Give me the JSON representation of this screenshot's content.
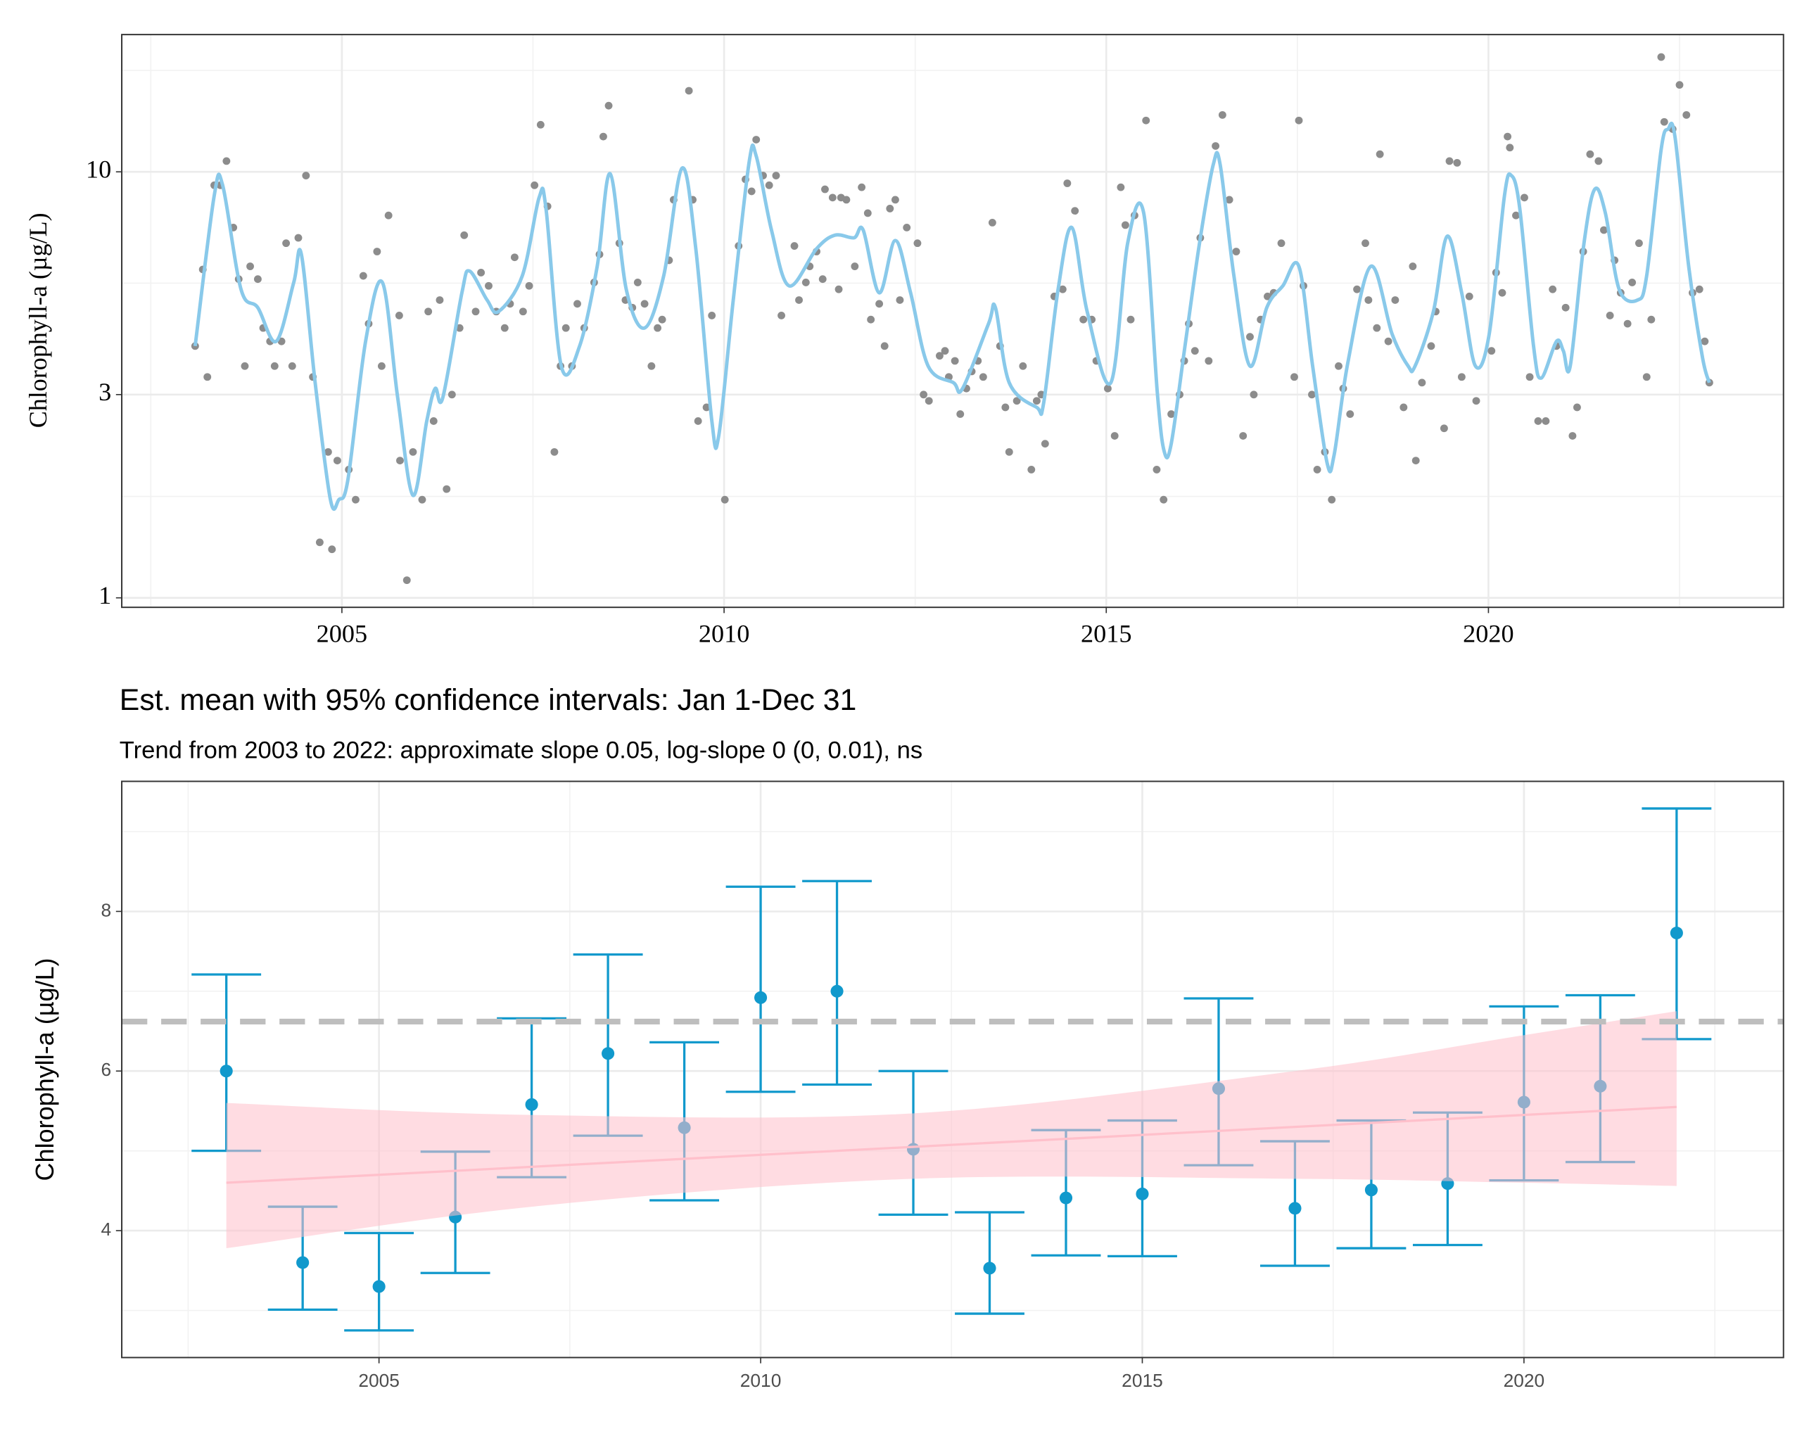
{
  "chart_data": [
    {
      "type": "scatter",
      "y_label": "Chlorophyll-a (µg/L)",
      "log_y": true,
      "grid": true,
      "xlim": [
        2002.12,
        2023.86
      ],
      "ylim": [
        0.95,
        21
      ],
      "xticks": [
        2005,
        2010,
        2015,
        2020
      ],
      "yticks": [
        1,
        3,
        10
      ],
      "minor_xticks": [
        2002.5,
        2007.5,
        2012.5,
        2017.5,
        2022.5
      ],
      "minor_yticks": [
        1.73,
        5.48,
        17.3
      ],
      "points": {
        "color": "#8c8c8c",
        "x": [
          2003.08,
          2003.18,
          2003.24,
          2003.33,
          2003.41,
          2003.49,
          2003.58,
          2003.65,
          2003.73,
          2003.8,
          2003.9,
          2003.97,
          2004.06,
          2004.12,
          2004.21,
          2004.27,
          2004.35,
          2004.43,
          2004.53,
          2004.62,
          2004.71,
          2004.82,
          2004.87,
          2004.94,
          2005.09,
          2005.18,
          2005.28,
          2005.35,
          2005.46,
          2005.52,
          2005.61,
          2005.75,
          2005.76,
          2005.85,
          2005.93,
          2006.05,
          2006.13,
          2006.2,
          2006.28,
          2006.37,
          2006.44,
          2006.54,
          2006.6,
          2006.75,
          2006.82,
          2006.92,
          2007.02,
          2007.13,
          2007.2,
          2007.26,
          2007.37,
          2007.45,
          2007.52,
          2007.6,
          2007.69,
          2007.78,
          2007.86,
          2007.93,
          2008.01,
          2008.08,
          2008.17,
          2008.3,
          2008.37,
          2008.42,
          2008.49,
          2008.63,
          2008.71,
          2008.8,
          2008.87,
          2008.96,
          2009.05,
          2009.13,
          2009.19,
          2009.28,
          2009.34,
          2009.54,
          2009.59,
          2009.66,
          2009.77,
          2009.84,
          2010.01,
          2010.19,
          2010.28,
          2010.36,
          2010.42,
          2010.51,
          2010.59,
          2010.68,
          2010.75,
          2010.92,
          2010.98,
          2011.07,
          2011.12,
          2011.21,
          2011.29,
          2011.32,
          2011.42,
          2011.5,
          2011.53,
          2011.6,
          2011.71,
          2011.8,
          2011.88,
          2011.92,
          2012.03,
          2012.1,
          2012.17,
          2012.24,
          2012.3,
          2012.39,
          2012.53,
          2012.61,
          2012.68,
          2012.82,
          2012.89,
          2012.94,
          2013.02,
          2013.09,
          2013.17,
          2013.24,
          2013.32,
          2013.39,
          2013.51,
          2013.61,
          2013.68,
          2013.73,
          2013.83,
          2013.91,
          2014.02,
          2014.09,
          2014.15,
          2014.2,
          2014.32,
          2014.43,
          2014.49,
          2014.59,
          2014.7,
          2014.81,
          2014.87,
          2015.02,
          2015.11,
          2015.19,
          2015.25,
          2015.32,
          2015.37,
          2015.52,
          2015.66,
          2015.75,
          2015.85,
          2015.96,
          2016.02,
          2016.08,
          2016.16,
          2016.23,
          2016.34,
          2016.43,
          2016.52,
          2016.61,
          2016.7,
          2016.79,
          2016.88,
          2016.93,
          2017.02,
          2017.11,
          2017.19,
          2017.29,
          2017.46,
          2017.52,
          2017.58,
          2017.69,
          2017.76,
          2017.86,
          2017.95,
          2018.04,
          2018.1,
          2018.19,
          2018.28,
          2018.39,
          2018.43,
          2018.54,
          2018.58,
          2018.69,
          2018.78,
          2018.89,
          2019.01,
          2019.05,
          2019.13,
          2019.25,
          2019.31,
          2019.42,
          2019.49,
          2019.59,
          2019.65,
          2019.75,
          2019.84,
          2020.04,
          2020.1,
          2020.18,
          2020.25,
          2020.28,
          2020.36,
          2020.47,
          2020.54,
          2020.65,
          2020.75,
          2020.84,
          2020.89,
          2021.01,
          2021.1,
          2021.16,
          2021.24,
          2021.33,
          2021.44,
          2021.51,
          2021.59,
          2021.65,
          2021.73,
          2021.82,
          2021.88,
          2021.97,
          2022.07,
          2022.13,
          2022.26,
          2022.3,
          2022.41,
          2022.5,
          2022.59,
          2022.67,
          2022.76,
          2022.83,
          2022.89
        ],
        "y": [
          3.9,
          5.9,
          3.3,
          9.3,
          9.3,
          10.6,
          7.4,
          5.6,
          3.5,
          6.0,
          5.6,
          4.3,
          4.0,
          3.5,
          4.0,
          6.8,
          3.5,
          7.0,
          9.8,
          3.3,
          1.35,
          2.2,
          1.3,
          2.1,
          2.0,
          1.7,
          5.7,
          4.4,
          6.5,
          3.5,
          7.9,
          4.6,
          2.1,
          1.1,
          2.2,
          1.7,
          4.7,
          2.6,
          5.0,
          1.8,
          3.0,
          4.3,
          7.1,
          4.7,
          5.8,
          5.4,
          4.7,
          4.3,
          4.9,
          6.3,
          4.7,
          5.4,
          9.3,
          12.9,
          8.3,
          2.2,
          3.5,
          4.3,
          3.5,
          4.9,
          4.3,
          5.5,
          6.4,
          12.1,
          14.3,
          6.8,
          5.0,
          4.8,
          5.5,
          4.9,
          3.5,
          4.3,
          4.5,
          6.2,
          8.6,
          15.5,
          8.6,
          2.6,
          2.8,
          4.6,
          1.7,
          6.7,
          9.6,
          9.0,
          11.9,
          9.8,
          9.3,
          9.8,
          4.6,
          6.7,
          5.0,
          5.5,
          6.0,
          6.5,
          5.6,
          9.1,
          8.7,
          5.3,
          8.7,
          8.6,
          6.0,
          9.2,
          8.0,
          4.5,
          4.9,
          3.9,
          8.2,
          8.6,
          5.0,
          7.4,
          6.8,
          3.0,
          2.9,
          3.7,
          3.8,
          3.3,
          3.6,
          2.7,
          3.1,
          3.4,
          3.6,
          3.3,
          7.6,
          3.9,
          2.8,
          2.2,
          2.9,
          3.5,
          2.0,
          2.9,
          3.0,
          2.3,
          5.1,
          5.3,
          9.4,
          8.1,
          4.5,
          4.5,
          3.6,
          3.1,
          2.4,
          9.2,
          7.5,
          4.5,
          7.9,
          13.2,
          2.0,
          1.7,
          2.7,
          3.0,
          3.6,
          4.4,
          3.8,
          7.0,
          3.6,
          11.5,
          13.6,
          8.6,
          6.5,
          2.4,
          4.1,
          3.0,
          4.5,
          5.1,
          5.2,
          6.8,
          3.3,
          13.2,
          5.4,
          3.0,
          2.0,
          2.2,
          1.7,
          3.5,
          3.1,
          2.7,
          5.3,
          6.8,
          5.0,
          4.3,
          11.0,
          4.0,
          5.0,
          2.8,
          6.0,
          2.1,
          3.2,
          3.9,
          4.7,
          2.5,
          10.6,
          10.5,
          3.3,
          5.1,
          2.9,
          3.8,
          5.8,
          5.2,
          12.1,
          11.4,
          7.9,
          8.7,
          3.3,
          2.6,
          2.6,
          5.3,
          3.9,
          4.8,
          2.4,
          2.8,
          6.5,
          11.0,
          10.6,
          7.3,
          4.6,
          6.2,
          5.2,
          4.4,
          5.5,
          6.8,
          3.3,
          4.5,
          18.6,
          13.1,
          12.6,
          16.0,
          13.6,
          5.2,
          5.3,
          4.0,
          3.2
        ]
      },
      "smooth": {
        "color": "#89c9ea",
        "x": [
          2003.08,
          2003.33,
          2003.44,
          2003.68,
          2003.9,
          2004.14,
          2004.37,
          2004.47,
          2004.65,
          2004.85,
          2004.96,
          2005.08,
          2005.31,
          2005.53,
          2005.73,
          2005.93,
          2006.11,
          2006.22,
          2006.32,
          2006.57,
          2006.67,
          2006.9,
          2007.05,
          2007.36,
          2007.58,
          2007.67,
          2007.87,
          2008.11,
          2008.34,
          2008.51,
          2008.72,
          2008.96,
          2009.21,
          2009.45,
          2009.63,
          2009.84,
          2009.93,
          2010.12,
          2010.33,
          2010.42,
          2010.62,
          2010.85,
          2011.21,
          2011.45,
          2011.7,
          2011.82,
          2012.03,
          2012.24,
          2012.44,
          2012.67,
          2013.0,
          2013.12,
          2013.46,
          2013.55,
          2013.73,
          2014.09,
          2014.18,
          2014.37,
          2014.55,
          2014.75,
          2015.06,
          2015.28,
          2015.49,
          2015.67,
          2015.76,
          2015.85,
          2016.03,
          2016.22,
          2016.4,
          2016.49,
          2016.67,
          2016.88,
          2017.1,
          2017.31,
          2017.52,
          2017.7,
          2017.89,
          2017.98,
          2018.16,
          2018.46,
          2018.74,
          2018.95,
          2019.04,
          2019.28,
          2019.46,
          2019.65,
          2019.83,
          2020.01,
          2020.21,
          2020.3,
          2020.41,
          2020.59,
          2020.69,
          2020.89,
          2020.98,
          2021.07,
          2021.25,
          2021.39,
          2021.53,
          2021.71,
          2021.95,
          2022.07,
          2022.26,
          2022.35,
          2022.44,
          2022.62,
          2022.8,
          2022.89
        ],
        "y": [
          3.9,
          8.8,
          9.3,
          5.3,
          4.8,
          4.0,
          5.5,
          6.4,
          3.2,
          1.7,
          1.7,
          1.9,
          4.0,
          5.5,
          2.95,
          1.74,
          2.6,
          3.1,
          2.95,
          5.2,
          5.85,
          5.0,
          4.7,
          5.7,
          8.7,
          8.2,
          3.5,
          3.9,
          6.0,
          9.9,
          5.3,
          4.3,
          5.7,
          10.2,
          6.6,
          2.6,
          2.4,
          5.0,
          10.6,
          10.9,
          7.3,
          5.4,
          6.6,
          7.1,
          7.0,
          7.3,
          5.2,
          6.9,
          5.2,
          3.5,
          3.2,
          3.1,
          4.4,
          4.8,
          3.2,
          2.8,
          2.86,
          5.3,
          7.4,
          4.7,
          3.2,
          6.8,
          8.0,
          3.0,
          2.2,
          2.3,
          3.9,
          6.8,
          10.4,
          10.4,
          5.7,
          3.5,
          4.8,
          5.4,
          6.0,
          3.5,
          2.07,
          2.16,
          3.56,
          6.0,
          4.16,
          3.5,
          3.5,
          4.7,
          7.06,
          5.2,
          3.5,
          4.16,
          8.8,
          9.8,
          8.2,
          3.9,
          3.28,
          4.0,
          3.8,
          3.5,
          6.8,
          9.1,
          8.0,
          5.3,
          5.0,
          5.7,
          11.3,
          12.6,
          12.1,
          6.0,
          3.67,
          3.2
        ]
      }
    },
    {
      "type": "errorbar",
      "title": "Est. mean with 95% confidence intervals: Jan 1-Dec 31",
      "subtitle": "Trend from 2003 to 2022: approximate slope 0.05, log-slope 0 (0, 0.01), ns",
      "y_label": "Chlorophyll-a (µg/L)",
      "grid": true,
      "xlim": [
        2001.63,
        2023.4
      ],
      "ylim": [
        2.41,
        9.63
      ],
      "xticks": [
        2005,
        2010,
        2015,
        2020
      ],
      "yticks": [
        4,
        6,
        8
      ],
      "minor_xticks": [
        2002.5,
        2007.5,
        2012.5,
        2017.5,
        2022.5
      ],
      "minor_yticks": [
        3,
        5,
        7,
        9
      ],
      "color": "#1199cc",
      "x": [
        2003,
        2004,
        2005,
        2006,
        2007,
        2008,
        2009,
        2010,
        2011,
        2012,
        2013,
        2014,
        2015,
        2016,
        2017,
        2018,
        2019,
        2020,
        2021,
        2022
      ],
      "values": [
        6.0,
        3.6,
        3.3,
        4.17,
        5.58,
        6.22,
        5.29,
        6.92,
        7.0,
        5.02,
        3.53,
        4.41,
        4.46,
        5.78,
        4.28,
        4.51,
        4.59,
        5.61,
        5.81,
        7.73
      ],
      "lower": [
        5.0,
        3.01,
        2.75,
        3.47,
        4.67,
        5.19,
        4.38,
        5.74,
        5.83,
        4.2,
        2.96,
        3.69,
        3.68,
        4.82,
        3.56,
        3.78,
        3.82,
        4.63,
        4.86,
        6.4
      ],
      "upper": [
        7.21,
        4.3,
        3.97,
        4.99,
        6.66,
        7.46,
        6.36,
        8.31,
        8.38,
        6.0,
        4.23,
        5.26,
        5.38,
        6.91,
        5.12,
        5.38,
        5.48,
        6.81,
        6.95,
        9.29
      ],
      "reference_line": 6.62,
      "reference_color": "#bebebe",
      "trend": {
        "color": "#ffc0cb",
        "x": [
          2003,
          2007,
          2012,
          2017,
          2020,
          2022
        ],
        "values": [
          4.6,
          4.8,
          5.05,
          5.3,
          5.45,
          5.55
        ],
        "lower": [
          3.78,
          4.3,
          4.65,
          4.65,
          4.6,
          4.56
        ],
        "upper": [
          5.6,
          5.45,
          5.47,
          6.0,
          6.45,
          6.75
        ]
      }
    }
  ]
}
